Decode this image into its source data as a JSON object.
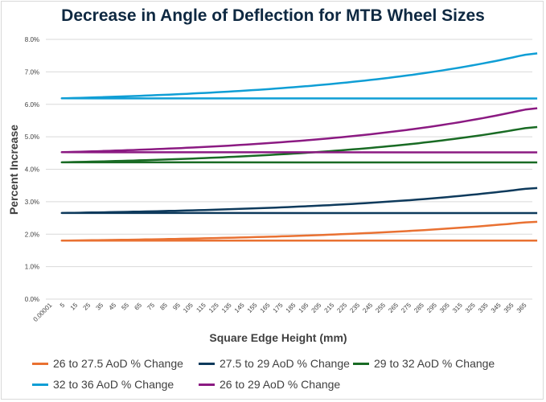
{
  "chart_data": {
    "type": "line",
    "title": "Decrease in Angle of Deflection for MTB Wheel Sizes",
    "xlabel": "Square Edge Height (mm)",
    "ylabel": "Percent Increase",
    "ylim": [
      0,
      0.08
    ],
    "yticks": [
      "0.0%",
      "1.0%",
      "2.0%",
      "3.0%",
      "4.0%",
      "5.0%",
      "6.0%",
      "7.0%",
      "8.0%"
    ],
    "x_tick_labels": [
      "0.00001",
      "5",
      "15",
      "25",
      "35",
      "45",
      "55",
      "65",
      "75",
      "85",
      "95",
      "105",
      "115",
      "125",
      "135",
      "145",
      "155",
      "165",
      "175",
      "185",
      "195",
      "205",
      "215",
      "225",
      "235",
      "245",
      "255",
      "265",
      "275",
      "285",
      "295",
      "305",
      "315",
      "325",
      "335",
      "345",
      "355",
      "365"
    ],
    "x": [
      1e-05,
      5,
      15,
      25,
      35,
      45,
      55,
      65,
      75,
      85,
      95,
      105,
      115,
      125,
      135,
      145,
      155,
      165,
      175,
      185,
      195,
      205,
      215,
      225,
      235,
      245,
      255,
      265,
      275,
      285,
      295,
      305,
      315,
      325,
      335,
      345,
      355,
      365,
      370
    ],
    "series": [
      {
        "name": "26 to 27.5 AoD % Change",
        "color": "#e97132",
        "start": 0.018,
        "end": 0.0238,
        "k": 2.2
      },
      {
        "name": "27.5 to 29 AoD % Change",
        "color": "#0e3a5c",
        "start": 0.0265,
        "end": 0.0342,
        "k": 2.2
      },
      {
        "name": "29 to 32 AoD % Change",
        "color": "#196b24",
        "start": 0.0421,
        "end": 0.053,
        "k": 2.2
      },
      {
        "name": "32 to 36 AoD % Change",
        "color": "#0f9ed5",
        "start": 0.0618,
        "end": 0.0757,
        "k": 2.2
      },
      {
        "name": "26 to 29 AoD % Change",
        "color": "#8b1a82",
        "start": 0.0452,
        "end": 0.0588,
        "k": 2.2
      }
    ]
  },
  "legend": {
    "row1": [
      "26 to 27.5 AoD % Change",
      "27.5 to 29 AoD % Change",
      "29 to 32 AoD % Change"
    ],
    "row2": [
      "32 to 36 AoD % Change",
      "26 to 29 AoD % Change"
    ]
  }
}
